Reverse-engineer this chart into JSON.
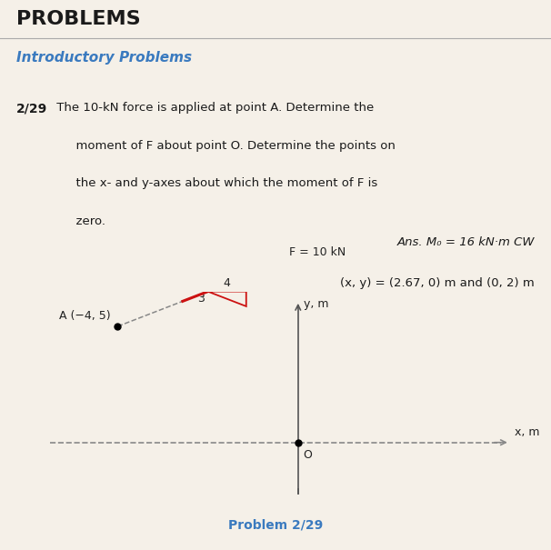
{
  "bg_color": "#f5f0e8",
  "title_text": "PROBLEMS",
  "title_color": "#1a1a1a",
  "subtitle_text": "Introductory Problems",
  "subtitle_color": "#3a7abf",
  "problem_number": "2/29",
  "ans_text": "Ans. M₀ = 16 kN·m CW",
  "ans_text2": "(x, y) = (2.67, 0) m and (0, 2) m",
  "axis_color": "#555555",
  "dashed_color": "#888888",
  "force_color": "#cc1111",
  "label_color": "#222222",
  "problem_label_color": "#3a7abf",
  "force_label": "F = 10 kN",
  "point_A_label": "A (−4, 5)",
  "origin_label": "O",
  "x_axis_label": "x, m",
  "y_axis_label": "y, m",
  "triangle_3_label": "3",
  "triangle_4_label": "4",
  "point_A": [
    -4,
    5
  ],
  "force_direction": [
    4,
    -3
  ]
}
